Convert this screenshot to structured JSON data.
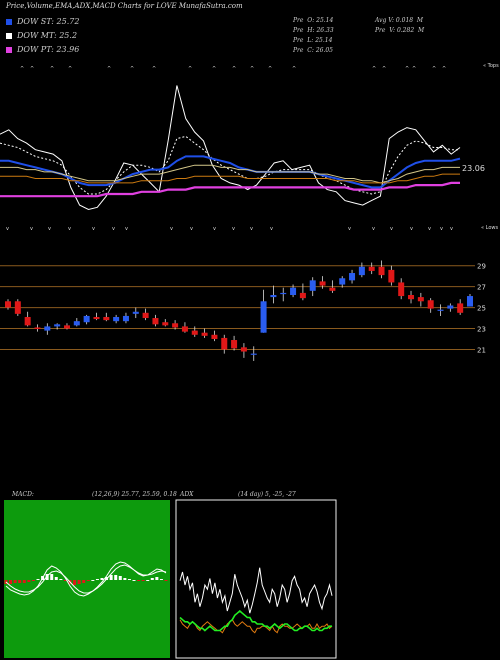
{
  "header": {
    "title": "Price,Volume,EMA,ADX,MACD Charts for LOVE MunafaSutra.com",
    "legend": [
      {
        "label": "DOW ST: 25.72",
        "color": "#1f4fe8"
      },
      {
        "label": "DOW MT: 25.2",
        "color": "#ffffff"
      },
      {
        "label": "DOW PT: 23.96",
        "color": "#e040e0"
      }
    ],
    "stats_left": [
      {
        "label": "Pre",
        "value": "O: 25.14"
      },
      {
        "label": "Pre",
        "value": "H: 26.33"
      },
      {
        "label": "Pre",
        "value": "L: 25.14"
      },
      {
        "label": "Pre",
        "value": "C: 26.05"
      }
    ],
    "stats_right": [
      {
        "label": "Avg V:",
        "value": "0.018",
        "unit": "M"
      },
      {
        "label": "Pre",
        "value": "V: 0.282",
        "unit": "M"
      }
    ]
  },
  "ema_panel": {
    "tops_label": "« Tops",
    "lows_label": "« Lows",
    "current_value_label": "23.06"
  },
  "price_panel": {
    "y_ticks": [
      "29",
      "27",
      "25",
      "23",
      "21"
    ]
  },
  "macd_panel": {
    "title": "MACD:",
    "params": "(12,26,9) 25.77, 25.59, 0.18",
    "bg": "#0d9b0d"
  },
  "adx_panel": {
    "title": "ADX",
    "params": "(14 day) 5, -25, -27"
  },
  "chart_data": [
    {
      "type": "candlestick",
      "title": "",
      "y_ticks": [
        21,
        23,
        25,
        27,
        29
      ],
      "ylim": [
        19.8,
        30.5
      ],
      "candles": [
        {
          "o": 25.6,
          "h": 25.8,
          "l": 24.8,
          "c": 25.0
        },
        {
          "o": 25.6,
          "h": 25.8,
          "l": 24.2,
          "c": 24.4
        },
        {
          "o": 24.1,
          "h": 24.6,
          "l": 23.2,
          "c": 23.3
        },
        {
          "o": 23.1,
          "h": 23.4,
          "l": 22.7,
          "c": 22.95
        },
        {
          "o": 22.8,
          "h": 23.5,
          "l": 22.4,
          "c": 23.2
        },
        {
          "o": 23.2,
          "h": 23.5,
          "l": 22.9,
          "c": 23.4
        },
        {
          "o": 23.3,
          "h": 23.5,
          "l": 22.9,
          "c": 23.0
        },
        {
          "o": 23.3,
          "h": 24.0,
          "l": 23.2,
          "c": 23.7
        },
        {
          "o": 23.6,
          "h": 24.3,
          "l": 23.4,
          "c": 24.2
        },
        {
          "o": 24.1,
          "h": 24.5,
          "l": 23.8,
          "c": 23.9
        },
        {
          "o": 24.1,
          "h": 24.5,
          "l": 23.7,
          "c": 23.8
        },
        {
          "o": 23.7,
          "h": 24.3,
          "l": 23.5,
          "c": 24.1
        },
        {
          "o": 23.7,
          "h": 24.5,
          "l": 23.5,
          "c": 24.2
        },
        {
          "o": 24.4,
          "h": 25.0,
          "l": 24.0,
          "c": 24.6
        },
        {
          "o": 24.5,
          "h": 24.9,
          "l": 23.8,
          "c": 24.0
        },
        {
          "o": 24.0,
          "h": 24.3,
          "l": 23.2,
          "c": 23.4
        },
        {
          "o": 23.6,
          "h": 23.9,
          "l": 23.2,
          "c": 23.3
        },
        {
          "o": 23.5,
          "h": 23.8,
          "l": 22.9,
          "c": 23.1
        },
        {
          "o": 23.2,
          "h": 23.6,
          "l": 22.6,
          "c": 22.7
        },
        {
          "o": 22.8,
          "h": 23.2,
          "l": 22.2,
          "c": 22.4
        },
        {
          "o": 22.6,
          "h": 23.0,
          "l": 22.1,
          "c": 22.3
        },
        {
          "o": 22.4,
          "h": 22.8,
          "l": 21.8,
          "c": 22.0
        },
        {
          "o": 22.1,
          "h": 22.4,
          "l": 20.6,
          "c": 21.0
        },
        {
          "o": 21.9,
          "h": 22.3,
          "l": 20.9,
          "c": 21.1
        },
        {
          "o": 21.2,
          "h": 21.6,
          "l": 20.2,
          "c": 20.8
        },
        {
          "o": 20.6,
          "h": 21.3,
          "l": 19.9,
          "c": 20.6
        },
        {
          "o": 22.6,
          "h": 26.7,
          "l": 22.6,
          "c": 25.6
        },
        {
          "o": 26.0,
          "h": 27.1,
          "l": 25.4,
          "c": 26.2
        },
        {
          "o": 26.3,
          "h": 26.9,
          "l": 25.6,
          "c": 26.4
        },
        {
          "o": 26.2,
          "h": 27.2,
          "l": 26.0,
          "c": 26.9
        },
        {
          "o": 26.4,
          "h": 27.3,
          "l": 25.7,
          "c": 25.9
        },
        {
          "o": 26.6,
          "h": 27.9,
          "l": 26.1,
          "c": 27.6
        },
        {
          "o": 27.5,
          "h": 28.0,
          "l": 26.8,
          "c": 27.1
        },
        {
          "o": 26.9,
          "h": 27.6,
          "l": 26.4,
          "c": 26.6
        },
        {
          "o": 27.2,
          "h": 28.0,
          "l": 26.9,
          "c": 27.8
        },
        {
          "o": 27.6,
          "h": 28.6,
          "l": 27.3,
          "c": 28.3
        },
        {
          "o": 28.1,
          "h": 29.3,
          "l": 27.9,
          "c": 28.9
        },
        {
          "o": 28.9,
          "h": 29.3,
          "l": 28.2,
          "c": 28.5
        },
        {
          "o": 28.9,
          "h": 29.5,
          "l": 27.8,
          "c": 28.1
        },
        {
          "o": 28.6,
          "h": 29.0,
          "l": 27.1,
          "c": 27.4
        },
        {
          "o": 27.4,
          "h": 27.8,
          "l": 25.8,
          "c": 26.1
        },
        {
          "o": 26.2,
          "h": 26.6,
          "l": 25.4,
          "c": 25.8
        },
        {
          "o": 26.0,
          "h": 26.4,
          "l": 25.1,
          "c": 25.6
        },
        {
          "o": 25.7,
          "h": 25.9,
          "l": 24.5,
          "c": 24.9
        },
        {
          "o": 24.7,
          "h": 25.3,
          "l": 24.2,
          "c": 24.8
        },
        {
          "o": 24.9,
          "h": 25.4,
          "l": 24.6,
          "c": 25.2
        },
        {
          "o": 25.4,
          "h": 25.8,
          "l": 24.3,
          "c": 24.5
        },
        {
          "o": 25.1,
          "h": 26.3,
          "l": 25.1,
          "c": 26.1
        }
      ]
    },
    {
      "type": "line",
      "title": "",
      "series": [
        {
          "color": "#ffffff",
          "style": "solid",
          "values": [
            24.6,
            24.8,
            24.4,
            24.2,
            23.9,
            23.8,
            23.7,
            23.4,
            22.2,
            21.4,
            21.2,
            21.3,
            21.8,
            22.5,
            23.3,
            23.2,
            22.8,
            22.4,
            22.0,
            24.3,
            26.8,
            25.3,
            24.7,
            24.3,
            23.2,
            22.6,
            22.4,
            22.3,
            22.1,
            22.3,
            22.8,
            23.3,
            23.4,
            23.0,
            23.1,
            23.2,
            22.4,
            22.1,
            22.0,
            21.6,
            21.5,
            21.4,
            21.6,
            21.8,
            24.4,
            24.7,
            24.9,
            24.8,
            24.3,
            23.8,
            24.1,
            23.7,
            24.0
          ]
        },
        {
          "color": "#ffffff",
          "style": "dashed",
          "values": [
            24.2,
            24.1,
            24.0,
            23.8,
            23.6,
            23.5,
            23.4,
            23.2,
            22.7,
            22.2,
            21.9,
            21.9,
            22.1,
            22.5,
            22.9,
            23.2,
            23.2,
            23.1,
            22.9,
            23.4,
            24.4,
            24.5,
            24.2,
            23.9,
            23.5,
            23.2,
            23.0,
            22.8,
            22.6,
            22.6,
            22.7,
            22.9,
            23.0,
            23.0,
            23.0,
            23.0,
            22.8,
            22.6,
            22.5,
            22.3,
            22.1,
            22.0,
            21.9,
            22.0,
            22.9,
            23.6,
            24.1,
            24.3,
            24.2,
            24.0,
            24.0,
            23.9,
            23.9
          ]
        },
        {
          "color": "#1f4fe8",
          "style": "solid",
          "values": [
            23.4,
            23.4,
            23.3,
            23.2,
            23.1,
            23.0,
            22.9,
            22.8,
            22.6,
            22.4,
            22.3,
            22.3,
            22.3,
            22.4,
            22.6,
            22.8,
            22.9,
            23.0,
            23.0,
            23.1,
            23.4,
            23.6,
            23.6,
            23.6,
            23.5,
            23.4,
            23.3,
            23.1,
            23.0,
            22.9,
            22.9,
            22.9,
            22.9,
            22.9,
            22.9,
            22.9,
            22.8,
            22.7,
            22.6,
            22.5,
            22.4,
            22.3,
            22.2,
            22.2,
            22.5,
            22.8,
            23.1,
            23.3,
            23.4,
            23.4,
            23.4,
            23.4,
            23.5
          ]
        },
        {
          "color": "#d4c78a",
          "style": "solid",
          "values": [
            23.1,
            23.1,
            23.1,
            23.0,
            23.0,
            22.9,
            22.9,
            22.8,
            22.7,
            22.6,
            22.5,
            22.5,
            22.5,
            22.5,
            22.6,
            22.7,
            22.8,
            22.8,
            22.8,
            22.9,
            23.0,
            23.1,
            23.2,
            23.2,
            23.2,
            23.1,
            23.1,
            23.0,
            23.0,
            22.9,
            22.9,
            22.9,
            22.9,
            22.9,
            22.9,
            22.9,
            22.8,
            22.8,
            22.7,
            22.6,
            22.6,
            22.5,
            22.5,
            22.4,
            22.5,
            22.6,
            22.8,
            22.9,
            23.0,
            23.0,
            23.1,
            23.1,
            23.1
          ]
        },
        {
          "color": "#cc7a10",
          "style": "solid",
          "values": [
            22.7,
            22.7,
            22.7,
            22.7,
            22.6,
            22.6,
            22.6,
            22.6,
            22.5,
            22.5,
            22.4,
            22.4,
            22.4,
            22.4,
            22.4,
            22.4,
            22.5,
            22.5,
            22.5,
            22.5,
            22.6,
            22.6,
            22.7,
            22.7,
            22.7,
            22.7,
            22.7,
            22.7,
            22.6,
            22.6,
            22.6,
            22.6,
            22.6,
            22.6,
            22.6,
            22.6,
            22.6,
            22.6,
            22.5,
            22.5,
            22.5,
            22.4,
            22.4,
            22.4,
            22.4,
            22.5,
            22.5,
            22.6,
            22.7,
            22.7,
            22.8,
            22.8,
            22.8
          ]
        },
        {
          "color": "#e040e0",
          "style": "solid",
          "values": [
            21.8,
            21.8,
            21.8,
            21.8,
            21.8,
            21.8,
            21.8,
            21.8,
            21.8,
            21.8,
            21.8,
            21.8,
            21.9,
            21.9,
            21.9,
            21.9,
            22.0,
            22.0,
            22.0,
            22.1,
            22.1,
            22.1,
            22.2,
            22.2,
            22.2,
            22.2,
            22.2,
            22.2,
            22.2,
            22.2,
            22.2,
            22.2,
            22.2,
            22.2,
            22.2,
            22.2,
            22.2,
            22.2,
            22.2,
            22.2,
            22.1,
            22.1,
            22.1,
            22.1,
            22.2,
            22.2,
            22.2,
            22.3,
            22.3,
            22.3,
            22.3,
            22.4,
            22.4
          ]
        }
      ]
    },
    {
      "type": "line",
      "title": "",
      "series": [
        {
          "color": "#ffffff",
          "values": [
            -0.3,
            -0.5,
            -0.6,
            -0.7,
            -0.75,
            -0.7,
            -0.55,
            -0.3,
            0.1,
            0.5,
            0.7,
            0.6,
            0.4,
            0.1,
            -0.3,
            -0.6,
            -0.75,
            -0.8,
            -0.7,
            -0.55,
            -0.35,
            -0.1,
            0.2,
            0.55,
            0.8,
            0.9,
            0.85,
            0.7,
            0.5,
            0.3,
            0.2,
            0.25,
            0.4,
            0.55,
            0.5,
            0.35
          ]
        },
        {
          "color": "#ffffff",
          "values": [
            -0.1,
            -0.3,
            -0.45,
            -0.55,
            -0.6,
            -0.6,
            -0.5,
            -0.35,
            -0.1,
            0.2,
            0.4,
            0.45,
            0.35,
            0.15,
            -0.1,
            -0.35,
            -0.55,
            -0.65,
            -0.65,
            -0.55,
            -0.4,
            -0.2,
            0.05,
            0.3,
            0.55,
            0.7,
            0.75,
            0.65,
            0.5,
            0.35,
            0.25,
            0.25,
            0.3,
            0.4,
            0.45,
            0.4
          ]
        }
      ],
      "histogram": [
        -0.2,
        -0.2,
        -0.15,
        -0.15,
        -0.15,
        -0.1,
        -0.05,
        0.05,
        0.2,
        0.3,
        0.3,
        0.15,
        0.05,
        -0.05,
        -0.2,
        -0.25,
        -0.2,
        -0.15,
        -0.05,
        0.0,
        0.05,
        0.1,
        0.15,
        0.25,
        0.25,
        0.2,
        0.1,
        0.05,
        0.0,
        -0.05,
        -0.05,
        0.0,
        0.1,
        0.15,
        0.05,
        -0.05
      ],
      "ylim": [
        -1.5,
        1.5
      ]
    },
    {
      "type": "line",
      "title": "",
      "series": [
        {
          "color": "#ffffff",
          "values": [
            32,
            36,
            30,
            34,
            28,
            31,
            22,
            26,
            20,
            24,
            30,
            28,
            33,
            26,
            31,
            24,
            28,
            22,
            25,
            18,
            22,
            26,
            35,
            30,
            27,
            24,
            20,
            23,
            17,
            21,
            26,
            31,
            38,
            30,
            27,
            24,
            22,
            28,
            26,
            20,
            24,
            30,
            28,
            22,
            26,
            32,
            34,
            30,
            28,
            22,
            24,
            20,
            26,
            28,
            30,
            27,
            22,
            19,
            24,
            26,
            30,
            25
          ]
        },
        {
          "color": "#e07a10",
          "values": [
            14,
            12,
            11,
            10,
            12,
            13,
            12,
            10,
            9,
            11,
            12,
            13,
            12,
            11,
            10,
            9,
            9,
            8,
            10,
            12,
            13,
            14,
            12,
            11,
            12,
            13,
            12,
            11,
            11,
            9,
            8,
            10,
            10,
            11,
            11,
            10,
            9,
            11,
            9,
            8,
            11,
            12,
            11,
            11,
            10,
            10,
            11,
            12,
            11,
            10,
            11,
            11,
            12,
            10,
            10,
            12,
            10,
            11,
            11,
            12,
            10,
            11
          ]
        },
        {
          "color": "#22ee22",
          "values": [
            15,
            14,
            13,
            13,
            12,
            13,
            12,
            11,
            10,
            10,
            9,
            10,
            11,
            10,
            9,
            9,
            9,
            10,
            11,
            11,
            13,
            14,
            16,
            17,
            18,
            17,
            16,
            15,
            15,
            13,
            13,
            12,
            12,
            12,
            11,
            11,
            10,
            11,
            12,
            11,
            10,
            11,
            12,
            12,
            11,
            10,
            9,
            9,
            10,
            10,
            11,
            11,
            10,
            9,
            9,
            10,
            9,
            9,
            10,
            10,
            11,
            11
          ]
        }
      ],
      "ylim": [
        0,
        60
      ]
    }
  ]
}
